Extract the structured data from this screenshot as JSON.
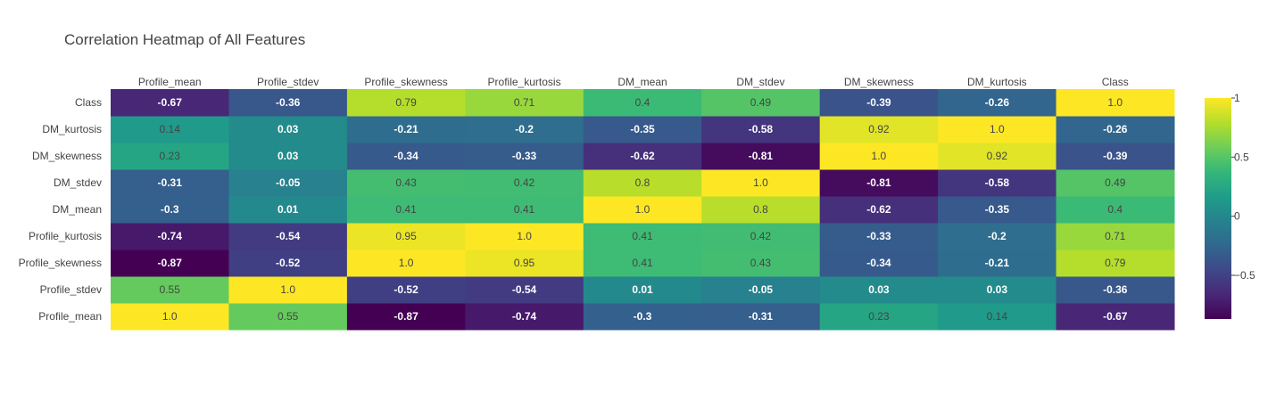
{
  "chart_data": {
    "type": "heatmap",
    "title": "Correlation Heatmap of All Features",
    "x": [
      "Profile_mean",
      "Profile_stdev",
      "Profile_skewness",
      "Profile_kurtosis",
      "DM_mean",
      "DM_stdev",
      "DM_skewness",
      "DM_kurtosis",
      "Class"
    ],
    "y": [
      "Profile_mean",
      "Profile_stdev",
      "Profile_skewness",
      "Profile_kurtosis",
      "DM_mean",
      "DM_stdev",
      "DM_skewness",
      "DM_kurtosis",
      "Class"
    ],
    "z": [
      [
        1.0,
        0.55,
        -0.87,
        -0.74,
        -0.3,
        -0.31,
        0.23,
        0.14,
        -0.67
      ],
      [
        0.55,
        1.0,
        -0.52,
        -0.54,
        0.01,
        -0.05,
        0.03,
        0.03,
        -0.36
      ],
      [
        -0.87,
        -0.52,
        1.0,
        0.95,
        0.41,
        0.43,
        -0.34,
        -0.21,
        0.79
      ],
      [
        -0.74,
        -0.54,
        0.95,
        1.0,
        0.41,
        0.42,
        -0.33,
        -0.2,
        0.71
      ],
      [
        -0.3,
        0.01,
        0.41,
        0.41,
        1.0,
        0.8,
        -0.62,
        -0.35,
        0.4
      ],
      [
        -0.31,
        -0.05,
        0.43,
        0.42,
        0.8,
        1.0,
        -0.81,
        -0.58,
        0.49
      ],
      [
        0.23,
        0.03,
        -0.34,
        -0.33,
        -0.62,
        -0.81,
        1.0,
        0.92,
        -0.39
      ],
      [
        0.14,
        0.03,
        -0.21,
        -0.2,
        -0.35,
        -0.58,
        0.92,
        1.0,
        -0.26
      ],
      [
        -0.67,
        -0.36,
        0.79,
        0.71,
        0.4,
        0.49,
        -0.39,
        -0.26,
        1.0
      ]
    ],
    "text": [
      [
        "1.0",
        "0.55",
        "-0.87",
        "-0.74",
        "-0.3",
        "-0.31",
        "0.23",
        "0.14",
        "-0.67"
      ],
      [
        "0.55",
        "1.0",
        "-0.52",
        "-0.54",
        "0.01",
        "-0.05",
        "0.03",
        "0.03",
        "-0.36"
      ],
      [
        "-0.87",
        "-0.52",
        "1.0",
        "0.95",
        "0.41",
        "0.43",
        "-0.34",
        "-0.21",
        "0.79"
      ],
      [
        "-0.74",
        "-0.54",
        "0.95",
        "1.0",
        "0.41",
        "0.42",
        "-0.33",
        "-0.2",
        "0.71"
      ],
      [
        "-0.3",
        "0.01",
        "0.41",
        "0.41",
        "1.0",
        "0.8",
        "-0.62",
        "-0.35",
        "0.4"
      ],
      [
        "-0.31",
        "-0.05",
        "0.43",
        "0.42",
        "0.8",
        "1.0",
        "-0.81",
        "-0.58",
        "0.49"
      ],
      [
        "0.23",
        "0.03",
        "-0.34",
        "-0.33",
        "-0.62",
        "-0.81",
        "1.0",
        "0.92",
        "-0.39"
      ],
      [
        "0.14",
        "0.03",
        "-0.21",
        "-0.2",
        "-0.35",
        "-0.58",
        "0.92",
        "1.0",
        "-0.26"
      ],
      [
        "-0.67",
        "-0.36",
        "0.79",
        "0.71",
        "0.4",
        "0.49",
        "-0.39",
        "-0.26",
        "1.0"
      ]
    ],
    "zrange": [
      -0.87,
      1.0
    ],
    "colorscale": "Viridis",
    "colorbar": {
      "tickvals": [
        1,
        0.5,
        0,
        -0.5
      ],
      "ticktext": [
        "1",
        "0.5",
        "0",
        "−0.5"
      ]
    },
    "xaxis_side": "top"
  },
  "colors": {
    "viridis": [
      "#440154",
      "#482878",
      "#3e4989",
      "#31688e",
      "#26828e",
      "#1f9e89",
      "#35b779",
      "#6ece58",
      "#b5de2b",
      "#fde725"
    ],
    "text_dark": "#444444",
    "text_light": "#ffffff"
  }
}
